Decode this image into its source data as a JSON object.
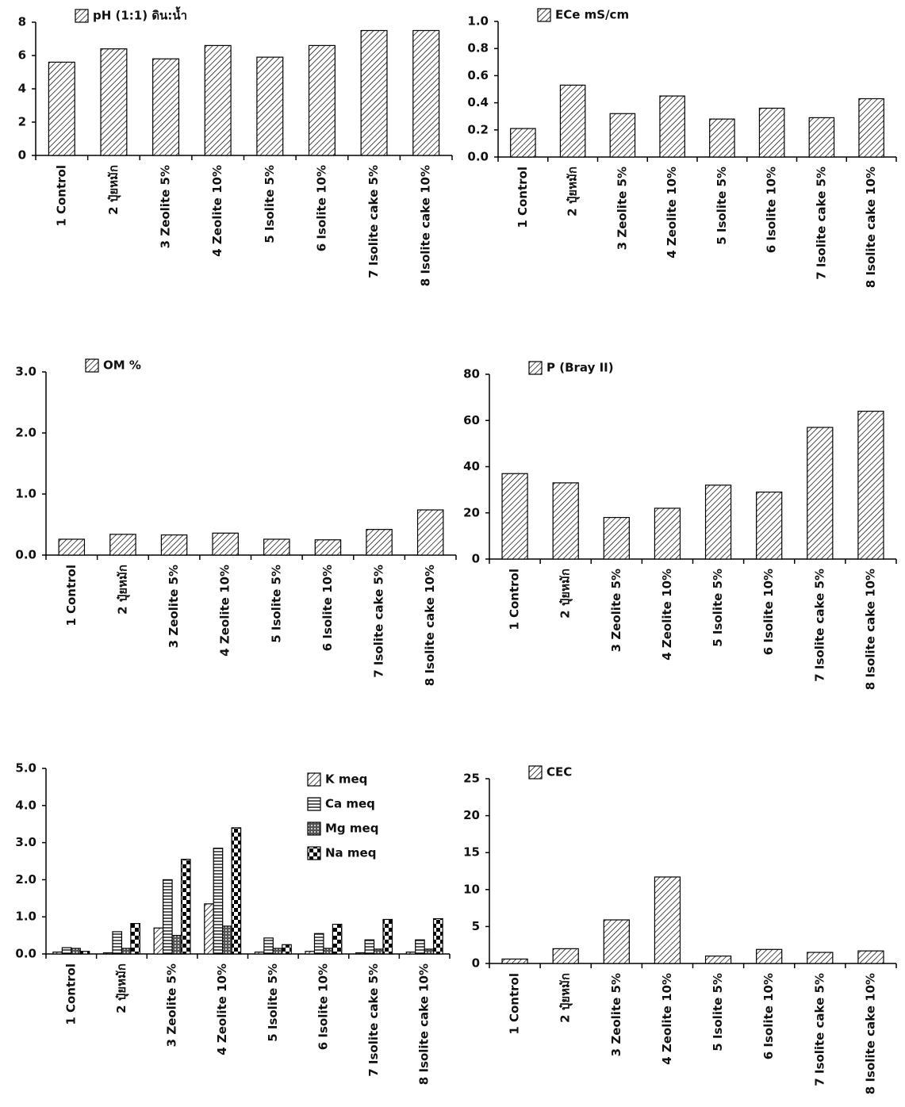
{
  "chart_data": [
    {
      "type": "bar",
      "categories": [
        "1 Control",
        "2 ปุ๋ยหมัก",
        "3 Zeolite 5%",
        "4 Zeolite 10%",
        "5 Isolite 5%",
        "6 Isolite 10%",
        "7 Isolite cake 5%",
        "8 Isolite cake 10%"
      ],
      "series": [
        {
          "name": "pH (1:1) ดิน:น้ำ",
          "color": "#000000",
          "pattern": "hatch",
          "values": [
            5.6,
            6.4,
            5.8,
            6.6,
            5.9,
            6.6,
            7.5,
            7.5
          ]
        }
      ],
      "ylim": [
        0,
        8
      ],
      "yticks": [
        0,
        2,
        4,
        6,
        8
      ],
      "legend": "top-left"
    },
    {
      "type": "bar",
      "categories": [
        "1 Control",
        "2 ปุ๋ยหมัก",
        "3 Zeolite 5%",
        "4 Zeolite 10%",
        "5 Isolite 5%",
        "6 Isolite 10%",
        "7 Isolite cake 5%",
        "8 Isolite cake 10%"
      ],
      "series": [
        {
          "name": "ECe mS/cm",
          "color": "#000000",
          "pattern": "hatch",
          "values": [
            0.21,
            0.53,
            0.32,
            0.45,
            0.28,
            0.36,
            0.29,
            0.43
          ]
        }
      ],
      "ylim": [
        0,
        1
      ],
      "yticks": [
        {
          "value": 0,
          "label": "0.0"
        },
        0.2,
        0.4,
        0.6,
        0.8,
        {
          "value": 1,
          "label": "1.0"
        }
      ],
      "legend": "top-left"
    },
    {
      "type": "bar",
      "categories": [
        "1 Control",
        "2 ปุ๋ยหมัก",
        "3 Zeolite 5%",
        "4 Zeolite 10%",
        "5 Isolite 5%",
        "6 Isolite 10%",
        "7 Isolite cake 5%",
        "8 Isolite cake 10%"
      ],
      "series": [
        {
          "name": "OM %",
          "color": "#000000",
          "pattern": "hatch",
          "values": [
            0.26,
            0.34,
            0.33,
            0.36,
            0.26,
            0.25,
            0.42,
            0.74
          ]
        }
      ],
      "ylim": [
        0,
        3
      ],
      "yticks": [
        {
          "value": 0,
          "label": "0.0"
        },
        {
          "value": 1,
          "label": "1.0"
        },
        {
          "value": 2,
          "label": "2.0"
        },
        {
          "value": 3,
          "label": "3.0"
        }
      ],
      "legend": "top-left"
    },
    {
      "type": "bar",
      "categories": [
        "1 Control",
        "2 ปุ๋ยหมัก",
        "3 Zeolite 5%",
        "4 Zeolite 10%",
        "5 Isolite 5%",
        "6 Isolite 10%",
        "7 Isolite cake 5%",
        "8 Isolite cake 10%"
      ],
      "series": [
        {
          "name": "P (Bray II)",
          "color": "#000000",
          "pattern": "hatch",
          "values": [
            37,
            33,
            18,
            22,
            32,
            29,
            57,
            64
          ]
        }
      ],
      "ylim": [
        0,
        80
      ],
      "yticks": [
        0,
        20,
        40,
        60,
        80
      ],
      "legend": "top-left"
    },
    {
      "type": "bar",
      "categories": [
        "1 Control",
        "2 ปุ๋ยหมัก",
        "3 Zeolite 5%",
        "4 Zeolite 10%",
        "5 Isolite 5%",
        "6 Isolite 10%",
        "7 Isolite cake 5%",
        "8 Isolite cake 10%"
      ],
      "series": [
        {
          "name": "K meq",
          "color": "#000000",
          "pattern": "hatch",
          "values": [
            0.05,
            0.03,
            0.7,
            1.35,
            0.05,
            0.07,
            0.03,
            0.05
          ]
        },
        {
          "name": "Ca meq",
          "color": "#000000",
          "pattern": "horizontal",
          "values": [
            0.17,
            0.6,
            2.0,
            2.85,
            0.43,
            0.55,
            0.38,
            0.38
          ]
        },
        {
          "name": "Mg meq",
          "color": "#000000",
          "pattern": "crosshatch",
          "values": [
            0.15,
            0.15,
            0.5,
            0.75,
            0.15,
            0.15,
            0.13,
            0.13
          ]
        },
        {
          "name": "Na meq",
          "color": "#000000",
          "pattern": "checker",
          "values": [
            0.07,
            0.82,
            2.55,
            3.4,
            0.25,
            0.8,
            0.93,
            0.95
          ]
        }
      ],
      "ylim": [
        0,
        5
      ],
      "yticks": [
        {
          "value": 0,
          "label": "0.0"
        },
        {
          "value": 1,
          "label": "1.0"
        },
        {
          "value": 2,
          "label": "2.0"
        },
        {
          "value": 3,
          "label": "3.0"
        },
        {
          "value": 4,
          "label": "4.0"
        },
        {
          "value": 5,
          "label": "5.0"
        }
      ],
      "legend": "top-right"
    },
    {
      "type": "bar",
      "categories": [
        "1 Control",
        "2 ปุ๋ยหมัก",
        "3 Zeolite 5%",
        "4 Zeolite 10%",
        "5 Isolite 5%",
        "6 Isolite 10%",
        "7 Isolite cake 5%",
        "8 Isolite cake 10%"
      ],
      "series": [
        {
          "name": "CEC",
          "color": "#000000",
          "pattern": "hatch",
          "values": [
            0.6,
            2.0,
            5.9,
            11.7,
            1.0,
            1.9,
            1.5,
            1.7
          ]
        }
      ],
      "ylim": [
        0,
        25
      ],
      "yticks": [
        0,
        5,
        10,
        15,
        20,
        25
      ],
      "legend": "top-left"
    }
  ]
}
